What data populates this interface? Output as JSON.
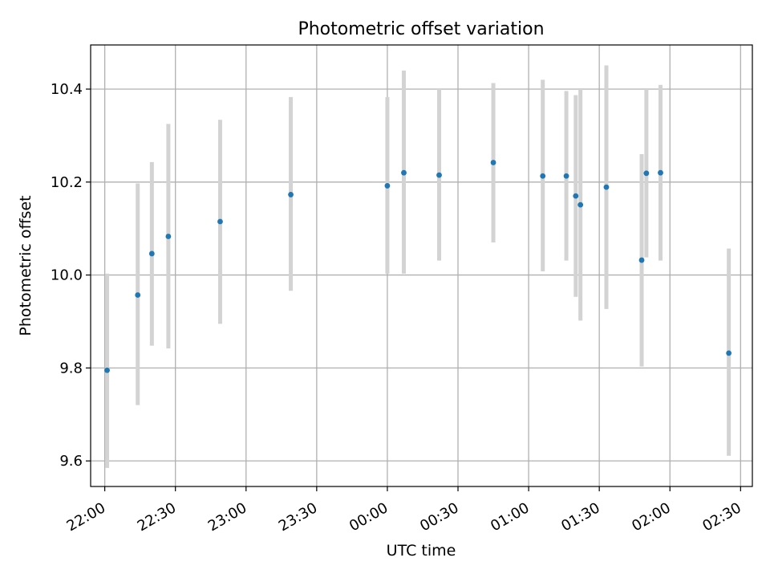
{
  "chart_data": {
    "type": "scatter",
    "title": "Photometric offset variation",
    "xlabel": "UTC time",
    "ylabel": "Photometric offset",
    "grid": true,
    "x_tick_labels": [
      "22:00",
      "22:30",
      "23:00",
      "23:30",
      "00:00",
      "00:30",
      "01:00",
      "01:30",
      "02:00",
      "02:30"
    ],
    "y_ticks": [
      9.6,
      9.8,
      10.0,
      10.2,
      10.4
    ],
    "y_tick_labels": [
      "9.6",
      "9.8",
      "10.0",
      "10.2",
      "10.4"
    ],
    "xlim": [
      "21:54",
      "02:35"
    ],
    "ylim": [
      9.545,
      10.495
    ],
    "points": [
      {
        "x": "22:01",
        "y": 9.795,
        "low": 9.585,
        "high": 10.003
      },
      {
        "x": "22:14",
        "y": 9.957,
        "low": 9.72,
        "high": 10.197
      },
      {
        "x": "22:20",
        "y": 10.046,
        "low": 9.848,
        "high": 10.243
      },
      {
        "x": "22:27",
        "y": 10.083,
        "low": 9.842,
        "high": 10.325
      },
      {
        "x": "22:49",
        "y": 10.115,
        "low": 9.895,
        "high": 10.334
      },
      {
        "x": "23:19",
        "y": 10.173,
        "low": 9.966,
        "high": 10.383
      },
      {
        "x": "00:00",
        "y": 10.192,
        "low": 10.003,
        "high": 10.383
      },
      {
        "x": "00:07",
        "y": 10.22,
        "low": 10.003,
        "high": 10.44
      },
      {
        "x": "00:22",
        "y": 10.215,
        "low": 10.031,
        "high": 10.402
      },
      {
        "x": "00:45",
        "y": 10.242,
        "low": 10.07,
        "high": 10.413
      },
      {
        "x": "01:06",
        "y": 10.213,
        "low": 10.008,
        "high": 10.42
      },
      {
        "x": "01:16",
        "y": 10.213,
        "low": 10.031,
        "high": 10.396
      },
      {
        "x": "01:20",
        "y": 10.17,
        "low": 9.953,
        "high": 10.387
      },
      {
        "x": "01:22",
        "y": 10.151,
        "low": 9.902,
        "high": 10.4
      },
      {
        "x": "01:33",
        "y": 10.189,
        "low": 9.927,
        "high": 10.451
      },
      {
        "x": "01:48",
        "y": 10.032,
        "low": 9.803,
        "high": 10.26
      },
      {
        "x": "01:50",
        "y": 10.219,
        "low": 10.038,
        "high": 10.4
      },
      {
        "x": "01:56",
        "y": 10.22,
        "low": 10.031,
        "high": 10.409
      },
      {
        "x": "02:25",
        "y": 9.832,
        "low": 9.611,
        "high": 10.057
      }
    ],
    "colors": {
      "point": "#1f77b4",
      "errorbar": "#d3d3d3",
      "grid": "#b0b0b0"
    }
  }
}
